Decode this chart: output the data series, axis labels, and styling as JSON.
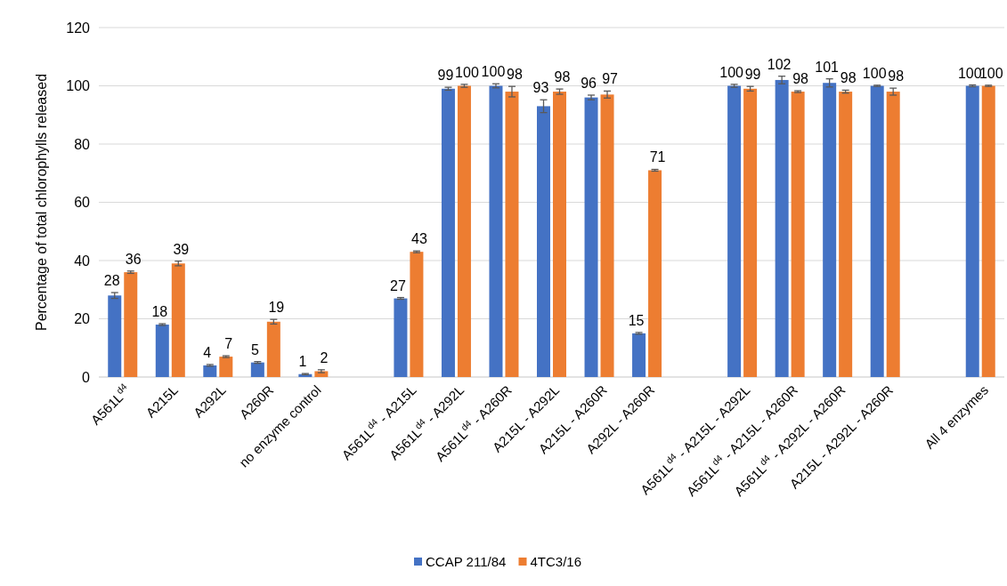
{
  "chart_data": {
    "type": "bar",
    "ylabel": "Percentage of total chlorophylls released",
    "categories": [
      "A561L$^{d4}$",
      "A215L",
      "A292L",
      "A260R",
      "no enzyme control",
      null,
      "A561L$^{d4}$ - A215L",
      "A561L$^{d4}$ - A292L",
      "A561L$^{d4}$ - A260R",
      "A215L - A292L",
      "A215L - A260R",
      "A292L - A260R",
      null,
      "A561L$^{d4}$ - A215L - A292L",
      "A561L$^{d4}$ - A215L - A260R",
      "A561L$^{d4}$ - A292L - A260R",
      "A215L - A292L - A260R",
      null,
      "All 4 enzymes"
    ],
    "series": [
      {
        "name": "CCAP 211/84",
        "color": "#4472c4",
        "values": [
          28,
          18,
          4,
          5,
          1,
          null,
          27,
          99,
          100,
          93,
          96,
          15,
          null,
          100,
          102,
          101,
          100,
          null,
          100
        ],
        "errors": [
          1,
          0.3,
          0.3,
          0.3,
          0.2,
          null,
          0.3,
          0.5,
          0.7,
          2.2,
          0.8,
          0.3,
          null,
          0.5,
          1.3,
          1.4,
          0.2,
          null,
          0.3
        ]
      },
      {
        "name": "4TC3/16",
        "color": "#ed7d31",
        "values": [
          36,
          39,
          7,
          19,
          2,
          null,
          43,
          100,
          98,
          98,
          97,
          71,
          null,
          99,
          98,
          98,
          98,
          null,
          100
        ],
        "errors": [
          0.4,
          0.8,
          0.3,
          0.8,
          0.5,
          null,
          0.3,
          0.5,
          1.8,
          0.9,
          1.2,
          0.3,
          null,
          0.8,
          0.3,
          0.5,
          1.2,
          null,
          0.2
        ]
      }
    ],
    "ylim": [
      0,
      120
    ],
    "yticks": [
      0,
      20,
      40,
      60,
      80,
      100,
      120
    ],
    "grid": "y",
    "legend": "bottom",
    "data_labels": true
  }
}
